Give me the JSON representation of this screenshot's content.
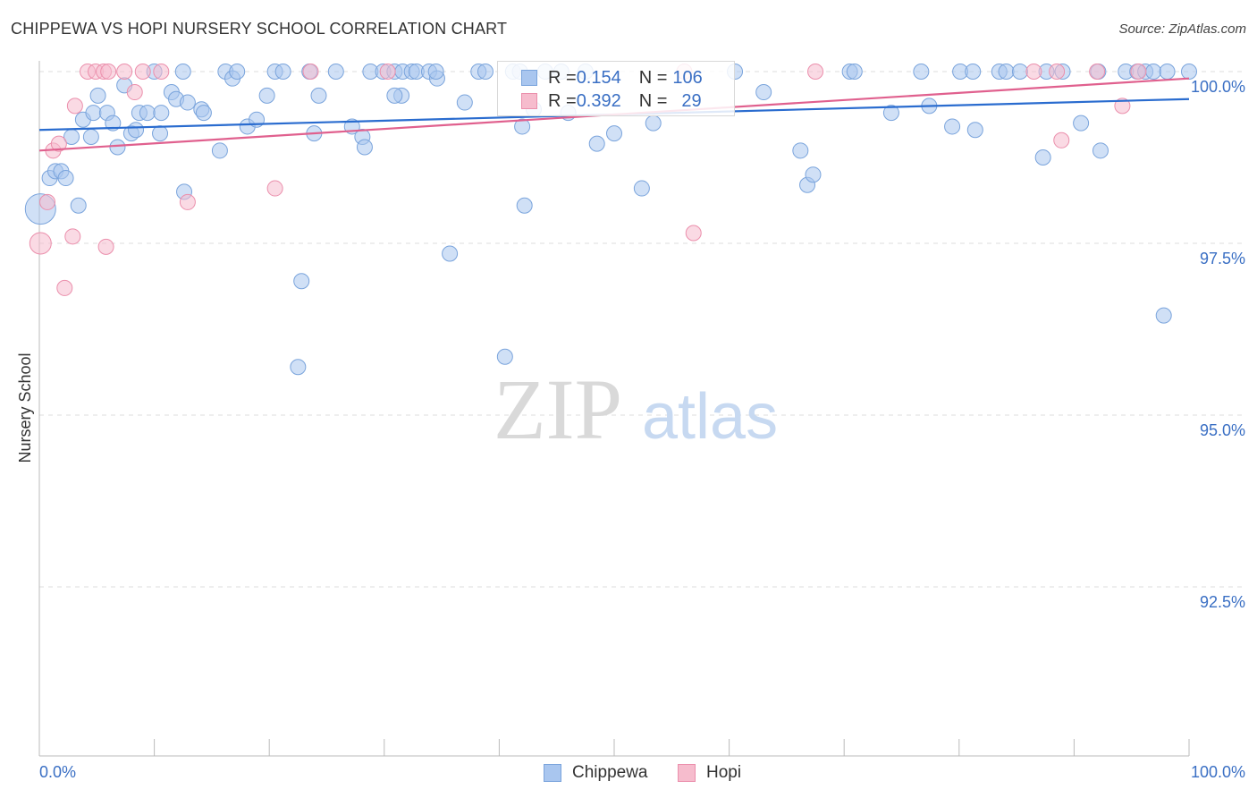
{
  "header": {
    "title": "CHIPPEWA VS HOPI NURSERY SCHOOL CORRELATION CHART",
    "source": "Source: ZipAtlas.com"
  },
  "watermark": {
    "zip": "ZIP",
    "atlas": "atlas"
  },
  "legend_top": {
    "rows": [
      {
        "r_label": "R = ",
        "r_value": "0.154",
        "n_label": "N = ",
        "n_value": "106"
      },
      {
        "r_label": "R = ",
        "r_value": "0.392",
        "n_label": "N = ",
        "n_value": "29"
      }
    ]
  },
  "legend_bottom": {
    "items": [
      "Chippewa",
      "Hopi"
    ]
  },
  "chart_data": {
    "type": "scatter",
    "title": "CHIPPEWA VS HOPI NURSERY SCHOOL CORRELATION CHART",
    "xlabel": "",
    "ylabel": "Nursery School",
    "xlim": [
      0,
      100
    ],
    "ylim": [
      90.0,
      100.25
    ],
    "x_tick_labels": [
      "0.0%",
      "100.0%"
    ],
    "y_ticks": [
      {
        "value": 100.0,
        "label": "100.0%"
      },
      {
        "value": 97.5,
        "label": "97.5%"
      },
      {
        "value": 95.0,
        "label": "95.0%"
      },
      {
        "value": 92.5,
        "label": "92.5%"
      }
    ],
    "grid": true,
    "colors": {
      "chippewa_fill": "#a9c6ef",
      "chippewa_stroke": "#7aa4dc",
      "chippewa_line": "#2a6ccf",
      "hopi_fill": "#f6bccd",
      "hopi_stroke": "#eb8fac",
      "hopi_line": "#e0608e",
      "tick_label": "#3a6fc4"
    },
    "series": [
      {
        "name": "Chippewa",
        "r": 0.154,
        "n": 106,
        "trend": {
          "x": [
            0,
            100
          ],
          "y": [
            99.15,
            99.6
          ]
        },
        "points": [
          [
            0.1,
            98.0
          ],
          [
            0.9,
            98.45
          ],
          [
            1.4,
            98.55
          ],
          [
            1.9,
            98.55
          ],
          [
            2.3,
            98.45
          ],
          [
            3.4,
            98.05
          ],
          [
            2.8,
            99.05
          ],
          [
            3.8,
            99.3
          ],
          [
            4.5,
            99.05
          ],
          [
            4.7,
            99.4
          ],
          [
            5.1,
            99.65
          ],
          [
            5.9,
            99.4
          ],
          [
            6.4,
            99.25
          ],
          [
            6.8,
            98.9
          ],
          [
            7.4,
            99.8
          ],
          [
            8.0,
            99.1
          ],
          [
            8.4,
            99.15
          ],
          [
            8.7,
            99.4
          ],
          [
            9.4,
            99.4
          ],
          [
            10.0,
            100.0
          ],
          [
            10.5,
            99.1
          ],
          [
            10.6,
            99.4
          ],
          [
            11.5,
            99.7
          ],
          [
            11.9,
            99.6
          ],
          [
            12.6,
            98.25
          ],
          [
            12.9,
            99.55
          ],
          [
            14.1,
            99.45
          ],
          [
            14.3,
            99.4
          ],
          [
            15.7,
            98.85
          ],
          [
            16.2,
            100.0
          ],
          [
            16.8,
            99.9
          ],
          [
            17.2,
            100.0
          ],
          [
            18.1,
            99.2
          ],
          [
            18.9,
            99.3
          ],
          [
            19.8,
            99.65
          ],
          [
            20.5,
            100.0
          ],
          [
            21.2,
            100.0
          ],
          [
            22.5,
            95.7
          ],
          [
            22.8,
            96.95
          ],
          [
            23.5,
            100.0
          ],
          [
            23.9,
            99.1
          ],
          [
            24.3,
            99.65
          ],
          [
            25.8,
            100.0
          ],
          [
            27.2,
            99.2
          ],
          [
            28.1,
            99.05
          ],
          [
            28.3,
            98.9
          ],
          [
            28.8,
            100.0
          ],
          [
            29.9,
            100.0
          ],
          [
            30.9,
            100.0
          ],
          [
            31.5,
            99.65
          ],
          [
            31.6,
            100.0
          ],
          [
            32.4,
            100.0
          ],
          [
            32.8,
            100.0
          ],
          [
            33.9,
            100.0
          ],
          [
            34.6,
            99.9
          ],
          [
            34.5,
            100.0
          ],
          [
            35.7,
            97.35
          ],
          [
            37.0,
            99.55
          ],
          [
            38.2,
            100.0
          ],
          [
            38.8,
            100.0
          ],
          [
            40.5,
            95.85
          ],
          [
            41.2,
            100.0
          ],
          [
            41.8,
            100.0
          ],
          [
            42.0,
            99.2
          ],
          [
            42.2,
            98.05
          ],
          [
            43.0,
            99.45
          ],
          [
            44.0,
            100.0
          ],
          [
            45.4,
            100.0
          ],
          [
            46.0,
            99.4
          ],
          [
            47.5,
            100.0
          ],
          [
            48.5,
            98.95
          ],
          [
            50.0,
            99.1
          ],
          [
            52.4,
            98.3
          ],
          [
            53.4,
            99.25
          ],
          [
            60.5,
            100.0
          ],
          [
            63.0,
            99.7
          ],
          [
            66.2,
            98.85
          ],
          [
            66.8,
            98.35
          ],
          [
            67.3,
            98.5
          ],
          [
            70.5,
            100.0
          ],
          [
            70.9,
            100.0
          ],
          [
            74.1,
            99.4
          ],
          [
            76.7,
            100.0
          ],
          [
            77.4,
            99.5
          ],
          [
            79.4,
            99.2
          ],
          [
            80.1,
            100.0
          ],
          [
            81.2,
            100.0
          ],
          [
            81.4,
            99.15
          ],
          [
            83.5,
            100.0
          ],
          [
            84.1,
            100.0
          ],
          [
            85.3,
            100.0
          ],
          [
            87.3,
            98.75
          ],
          [
            87.6,
            100.0
          ],
          [
            89.0,
            100.0
          ],
          [
            90.6,
            99.25
          ],
          [
            92.3,
            98.85
          ],
          [
            92.1,
            100.0
          ],
          [
            94.5,
            100.0
          ],
          [
            95.5,
            100.0
          ],
          [
            96.2,
            100.0
          ],
          [
            96.9,
            100.0
          ],
          [
            97.8,
            96.45
          ],
          [
            98.1,
            100.0
          ],
          [
            100.0,
            100.0
          ],
          [
            12.5,
            100.0
          ],
          [
            30.9,
            99.65
          ]
        ]
      },
      {
        "name": "Hopi",
        "r": 0.392,
        "n": 29,
        "trend": {
          "x": [
            0,
            100
          ],
          "y": [
            98.85,
            99.9
          ]
        },
        "points": [
          [
            0.1,
            97.5
          ],
          [
            0.7,
            98.1
          ],
          [
            1.2,
            98.85
          ],
          [
            1.7,
            98.95
          ],
          [
            2.2,
            96.85
          ],
          [
            2.9,
            97.6
          ],
          [
            3.1,
            99.5
          ],
          [
            4.2,
            100.0
          ],
          [
            4.9,
            100.0
          ],
          [
            5.6,
            100.0
          ],
          [
            5.8,
            97.45
          ],
          [
            6.0,
            100.0
          ],
          [
            7.4,
            100.0
          ],
          [
            8.3,
            99.7
          ],
          [
            9.0,
            100.0
          ],
          [
            10.6,
            100.0
          ],
          [
            12.9,
            98.1
          ],
          [
            20.5,
            98.3
          ],
          [
            23.6,
            100.0
          ],
          [
            30.3,
            100.0
          ],
          [
            56.1,
            100.0
          ],
          [
            56.9,
            97.65
          ],
          [
            67.5,
            100.0
          ],
          [
            86.5,
            100.0
          ],
          [
            88.5,
            100.0
          ],
          [
            88.9,
            99.0
          ],
          [
            92.0,
            100.0
          ],
          [
            94.2,
            99.5
          ],
          [
            95.6,
            100.0
          ]
        ]
      }
    ]
  }
}
